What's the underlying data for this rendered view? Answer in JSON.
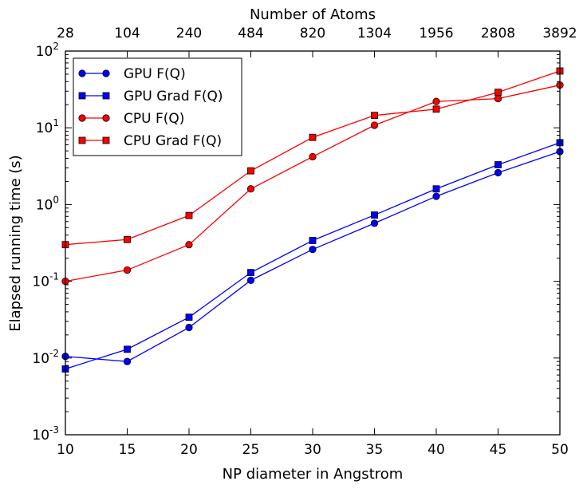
{
  "chart_data": {
    "type": "line",
    "xlabel": "NP diameter in Angstrom",
    "x2label": "Number of Atoms",
    "ylabel": "Elapsed running time (s)",
    "x": [
      10,
      15,
      20,
      25,
      30,
      35,
      40,
      45,
      50
    ],
    "x_ticks": [
      "10",
      "15",
      "20",
      "25",
      "30",
      "35",
      "40",
      "45",
      "50"
    ],
    "x2_ticks": [
      "28",
      "104",
      "240",
      "484",
      "820",
      "1304",
      "1956",
      "2808",
      "3892"
    ],
    "xlim": [
      10,
      50
    ],
    "y_scale": "log",
    "ylim": [
      0.001,
      100
    ],
    "y_ticks": [
      {
        "value": 0.001,
        "base": "10",
        "exp": "-3"
      },
      {
        "value": 0.01,
        "base": "10",
        "exp": "-2"
      },
      {
        "value": 0.1,
        "base": "10",
        "exp": "-1"
      },
      {
        "value": 1,
        "base": "10",
        "exp": "0"
      },
      {
        "value": 10,
        "base": "10",
        "exp": "1"
      },
      {
        "value": 100,
        "base": "10",
        "exp": "2"
      }
    ],
    "legend_position": "top-left",
    "series": [
      {
        "name": "GPU F(Q)",
        "color": "#0000ff",
        "marker": "circle",
        "values": [
          0.0105,
          0.009,
          0.025,
          0.103,
          0.26,
          0.57,
          1.28,
          2.6,
          4.9
        ]
      },
      {
        "name": "GPU Grad F(Q)",
        "color": "#0000ff",
        "marker": "square",
        "values": [
          0.0072,
          0.013,
          0.034,
          0.13,
          0.34,
          0.73,
          1.6,
          3.3,
          6.4
        ]
      },
      {
        "name": "CPU F(Q)",
        "color": "#ff0000",
        "marker": "circle",
        "values": [
          0.1,
          0.14,
          0.3,
          1.6,
          4.2,
          10.8,
          22.0,
          24.0,
          36.0
        ]
      },
      {
        "name": "CPU Grad F(Q)",
        "color": "#ff0000",
        "marker": "square",
        "values": [
          0.3,
          0.35,
          0.72,
          2.75,
          7.5,
          14.5,
          17.5,
          29.0,
          55.0
        ]
      }
    ]
  }
}
